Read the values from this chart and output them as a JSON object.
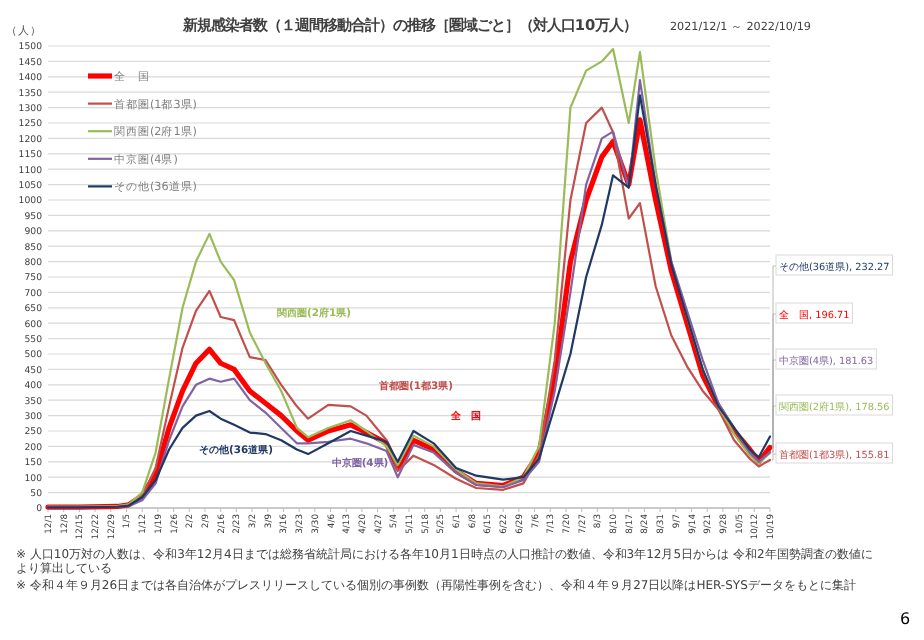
{
  "chart_data": {
    "type": "line",
    "title": "新規感染者数（１週間移動合計）の推移［圏域ごと］（対人口10万人）",
    "subtitle": "2021/12/1 ～ 2022/10/19",
    "ylabel": "（人）",
    "x": [
      "2021-12-01",
      "2021-12-15",
      "2022-01-01",
      "2022-01-06",
      "2022-01-12",
      "2022-01-18",
      "2022-01-24",
      "2022-01-30",
      "2022-02-05",
      "2022-02-11",
      "2022-02-16",
      "2022-02-22",
      "2022-03-01",
      "2022-03-08",
      "2022-03-15",
      "2022-03-22",
      "2022-03-27",
      "2022-04-05",
      "2022-04-15",
      "2022-04-22",
      "2022-05-01",
      "2022-05-06",
      "2022-05-13",
      "2022-05-22",
      "2022-06-01",
      "2022-06-10",
      "2022-06-22",
      "2022-07-01",
      "2022-07-08",
      "2022-07-15",
      "2022-07-22",
      "2022-07-29",
      "2022-08-05",
      "2022-08-10",
      "2022-08-17",
      "2022-08-22",
      "2022-08-29",
      "2022-09-05",
      "2022-09-12",
      "2022-09-19",
      "2022-09-26",
      "2022-10-03",
      "2022-10-10",
      "2022-10-14",
      "2022-10-19"
    ],
    "series": [
      {
        "name": "全　国",
        "color": "#ff0000",
        "values": [
          3,
          3,
          5,
          10,
          40,
          110,
          260,
          380,
          470,
          515,
          470,
          450,
          380,
          340,
          300,
          250,
          220,
          250,
          270,
          245,
          210,
          130,
          220,
          190,
          120,
          80,
          73,
          100,
          180,
          420,
          800,
          1000,
          1140,
          1190,
          1050,
          1260,
          1000,
          770,
          600,
          430,
          330,
          250,
          190,
          150,
          196.71
        ]
      },
      {
        "name": "首都圏(1都3県)",
        "color": "#c0504d",
        "values": [
          5,
          5,
          6,
          10,
          40,
          130,
          330,
          520,
          640,
          705,
          620,
          610,
          490,
          480,
          400,
          330,
          290,
          335,
          330,
          300,
          220,
          120,
          170,
          140,
          95,
          65,
          59,
          80,
          170,
          480,
          1000,
          1250,
          1300,
          1220,
          940,
          990,
          720,
          560,
          460,
          380,
          320,
          220,
          160,
          135,
          155.81
        ]
      },
      {
        "name": "関西圏(2府1県)",
        "color": "#9bbb59",
        "values": [
          4,
          4,
          6,
          12,
          50,
          180,
          420,
          650,
          800,
          890,
          800,
          740,
          570,
          470,
          380,
          260,
          230,
          260,
          285,
          250,
          200,
          140,
          235,
          200,
          125,
          80,
          70,
          100,
          200,
          600,
          1300,
          1420,
          1450,
          1490,
          1250,
          1480,
          1100,
          800,
          620,
          450,
          330,
          240,
          170,
          145,
          178.56
        ]
      },
      {
        "name": "中京圏(4県)",
        "color": "#8064a2",
        "values": [
          2,
          2,
          4,
          6,
          25,
          80,
          220,
          330,
          400,
          420,
          410,
          420,
          350,
          310,
          260,
          210,
          210,
          215,
          225,
          210,
          185,
          100,
          205,
          180,
          115,
          75,
          68,
          90,
          150,
          380,
          700,
          1050,
          1200,
          1222,
          1040,
          1389,
          1050,
          800,
          640,
          480,
          340,
          260,
          180,
          150,
          181.63
        ]
      },
      {
        "name": "その他(36道県)",
        "color": "#1f3864",
        "values": [
          2,
          2,
          4,
          8,
          35,
          90,
          190,
          260,
          300,
          315,
          290,
          270,
          245,
          240,
          220,
          190,
          175,
          210,
          250,
          235,
          215,
          150,
          250,
          210,
          130,
          105,
          92,
          100,
          160,
          330,
          500,
          750,
          920,
          1080,
          1040,
          1340,
          1050,
          790,
          620,
          450,
          330,
          260,
          190,
          165,
          232.27
        ]
      }
    ],
    "ylim": [
      0,
      1500
    ],
    "yticks": [
      0,
      50,
      100,
      150,
      200,
      250,
      300,
      350,
      400,
      450,
      500,
      550,
      600,
      650,
      700,
      750,
      800,
      850,
      900,
      950,
      1000,
      1050,
      1100,
      1150,
      1200,
      1250,
      1300,
      1350,
      1400,
      1450,
      1500
    ],
    "xlim": [
      "2021-12-01",
      "2022-10-19"
    ],
    "xticks": [
      {
        "value": "2021-12-01",
        "label": "12/1"
      },
      {
        "value": "2021-12-08",
        "label": "12/8"
      },
      {
        "value": "2021-12-15",
        "label": "12/15"
      },
      {
        "value": "2021-12-22",
        "label": "12/22"
      },
      {
        "value": "2021-12-29",
        "label": "12/29"
      },
      {
        "value": "2022-01-05",
        "label": "1/5"
      },
      {
        "value": "2022-01-12",
        "label": "1/12"
      },
      {
        "value": "2022-01-19",
        "label": "1/19"
      },
      {
        "value": "2022-01-26",
        "label": "1/26"
      },
      {
        "value": "2022-02-02",
        "label": "2/2"
      },
      {
        "value": "2022-02-09",
        "label": "2/9"
      },
      {
        "value": "2022-02-16",
        "label": "2/16"
      },
      {
        "value": "2022-02-23",
        "label": "2/23"
      },
      {
        "value": "2022-03-02",
        "label": "3/2"
      },
      {
        "value": "2022-03-09",
        "label": "3/9"
      },
      {
        "value": "2022-03-16",
        "label": "3/16"
      },
      {
        "value": "2022-03-23",
        "label": "3/23"
      },
      {
        "value": "2022-03-30",
        "label": "3/30"
      },
      {
        "value": "2022-04-06",
        "label": "4/6"
      },
      {
        "value": "2022-04-13",
        "label": "4/13"
      },
      {
        "value": "2022-04-20",
        "label": "4/20"
      },
      {
        "value": "2022-04-27",
        "label": "4/27"
      },
      {
        "value": "2022-05-04",
        "label": "5/4"
      },
      {
        "value": "2022-05-11",
        "label": "5/11"
      },
      {
        "value": "2022-05-18",
        "label": "5/18"
      },
      {
        "value": "2022-05-25",
        "label": "5/25"
      },
      {
        "value": "2022-06-01",
        "label": "6/1"
      },
      {
        "value": "2022-06-08",
        "label": "6/8"
      },
      {
        "value": "2022-06-15",
        "label": "6/15"
      },
      {
        "value": "2022-06-22",
        "label": "6/22"
      },
      {
        "value": "2022-06-29",
        "label": "6/29"
      },
      {
        "value": "2022-07-06",
        "label": "7/6"
      },
      {
        "value": "2022-07-13",
        "label": "7/13"
      },
      {
        "value": "2022-07-20",
        "label": "7/20"
      },
      {
        "value": "2022-07-27",
        "label": "7/27"
      },
      {
        "value": "2022-08-03",
        "label": "8/3"
      },
      {
        "value": "2022-08-10",
        "label": "8/10"
      },
      {
        "value": "2022-08-17",
        "label": "8/17"
      },
      {
        "value": "2022-08-24",
        "label": "8/24"
      },
      {
        "value": "2022-08-31",
        "label": "8/31"
      },
      {
        "value": "2022-09-07",
        "label": "9/7"
      },
      {
        "value": "2022-09-14",
        "label": "9/14"
      },
      {
        "value": "2022-09-21",
        "label": "9/21"
      },
      {
        "value": "2022-09-28",
        "label": "9/28"
      },
      {
        "value": "2022-10-05",
        "label": "10/5"
      },
      {
        "value": "2022-10-12",
        "label": "10/12"
      },
      {
        "value": "2022-10-19",
        "label": "10/19"
      }
    ],
    "grid": "y",
    "legend": "top left",
    "marker": "none",
    "line_style": "solid",
    "annotations": [
      "全　国",
      "首都圏(1都3県)",
      "関西圏(2府1県)",
      "中京圏(4県)",
      "その他(36道県)",
      {
        "text": "その他(36道県), 232.27",
        "x": "2022-10-19",
        "y": 232.27
      },
      {
        "text": "全　国, 196.71",
        "x": "2022-10-19",
        "y": 196.71
      },
      {
        "text": "中京圏(4県), 181.63",
        "x": "2022-10-19",
        "y": 181.63
      },
      {
        "text": "関西圏(2府1県), 178.56",
        "x": "2022-10-19",
        "y": 178.56
      },
      {
        "text": "首都圏(1都3県), 155.81",
        "x": "2022-10-19",
        "y": 155.81
      },
      "※ 人口10万対の人数は、令和3年12月4日までは総務省統計局における各年10月1日時点の人口推計の数値、令和3年12月5日からは 令和2年国勢調査の数値により算出している",
      "※ 令和４年９月26日までは各自治体がプレスリリースしている個別の事例数（再陽性事例を含む）、令和４年９月27日以降はHER-SYSデータをもとに集計",
      "6"
    ]
  }
}
